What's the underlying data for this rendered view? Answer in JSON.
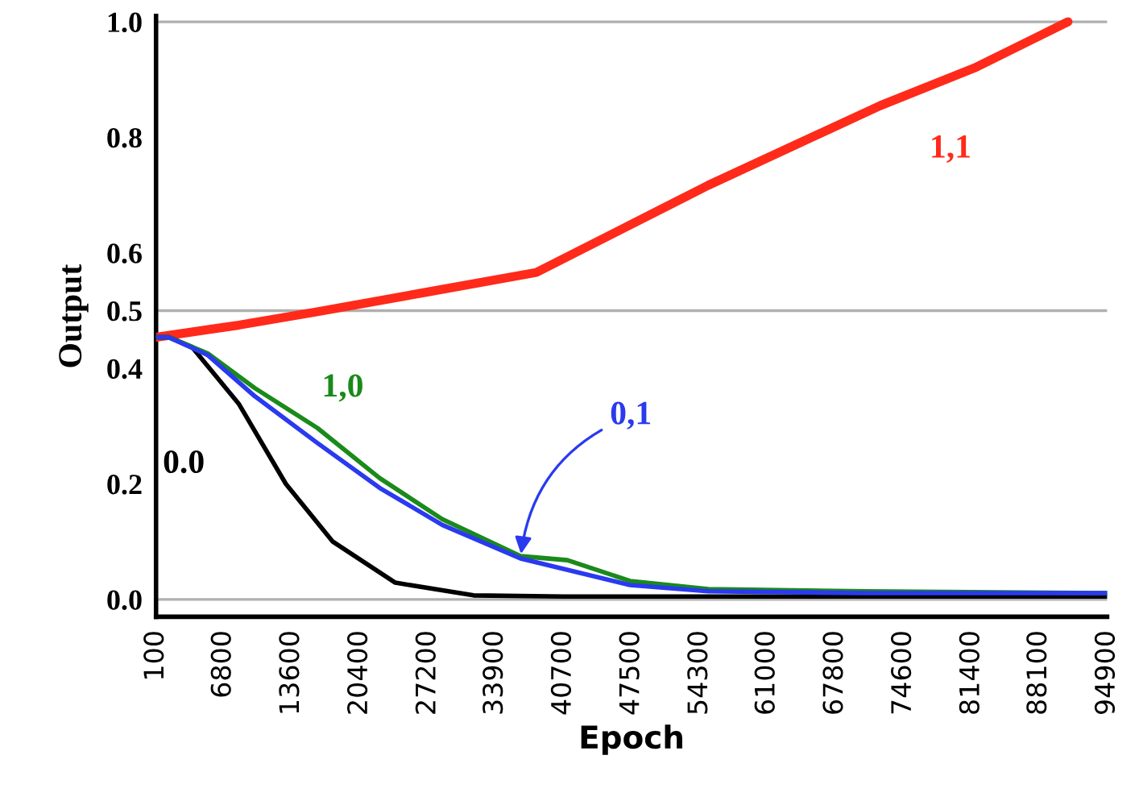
{
  "chart_data": {
    "type": "line",
    "xlabel": "Epoch",
    "ylabel": "Output",
    "xlim": [
      100,
      94900
    ],
    "xticks": [
      100,
      6800,
      13600,
      20400,
      27200,
      33900,
      40700,
      47500,
      54300,
      61000,
      67800,
      74600,
      81400,
      88100,
      94900
    ],
    "ylim": [
      -0.03,
      1.01
    ],
    "yticks": [
      {
        "value": 0,
        "label": "0.0"
      },
      0.2,
      0.4,
      0.5,
      0.6,
      0.8,
      {
        "value": 1,
        "label": "1.0"
      }
    ],
    "grid": false,
    "legend": false,
    "marker": "none",
    "line_style": "solid",
    "ref_lines": [
      {
        "axis": "y",
        "value": 0,
        "color": "#b0b0b0"
      },
      {
        "axis": "y",
        "value": 0.5,
        "color": "#b0b0b0"
      },
      {
        "axis": "y",
        "value": 1,
        "color": "#b0b0b0"
      }
    ],
    "series": [
      {
        "name": "1,1",
        "color": "#ff2a1a",
        "x": [
          100,
          8370,
          16170,
          27090,
          38000,
          55150,
          72300,
          81660,
          91000
        ],
        "values": [
          0.454,
          0.475,
          0.498,
          0.532,
          0.566,
          0.717,
          0.855,
          0.92,
          1.0
        ]
      },
      {
        "name": "0.0",
        "color": "#000000",
        "x": [
          100,
          1350,
          3690,
          8370,
          13040,
          17720,
          23950,
          31750,
          40700,
          60000,
          94900
        ],
        "values": [
          0.454,
          0.454,
          0.437,
          0.338,
          0.2,
          0.1,
          0.029,
          0.007,
          0.005,
          0.005,
          0.005
        ]
      },
      {
        "name": "1,0",
        "color": "#1a8a1a",
        "x": [
          100,
          1350,
          5250,
          9930,
          16170,
          22400,
          28630,
          36420,
          41100,
          47340,
          55150,
          70770,
          94900
        ],
        "values": [
          0.454,
          0.454,
          0.426,
          0.366,
          0.297,
          0.21,
          0.139,
          0.075,
          0.068,
          0.032,
          0.018,
          0.014,
          0.011
        ]
      },
      {
        "name": "0,1",
        "color": "#2a3aee",
        "x": [
          100,
          1350,
          5250,
          9930,
          16170,
          22400,
          28630,
          36420,
          47340,
          55150,
          70770,
          94900
        ],
        "values": [
          0.454,
          0.454,
          0.423,
          0.352,
          0.271,
          0.193,
          0.129,
          0.071,
          0.025,
          0.014,
          0.011,
          0.011
        ]
      }
    ]
  }
}
